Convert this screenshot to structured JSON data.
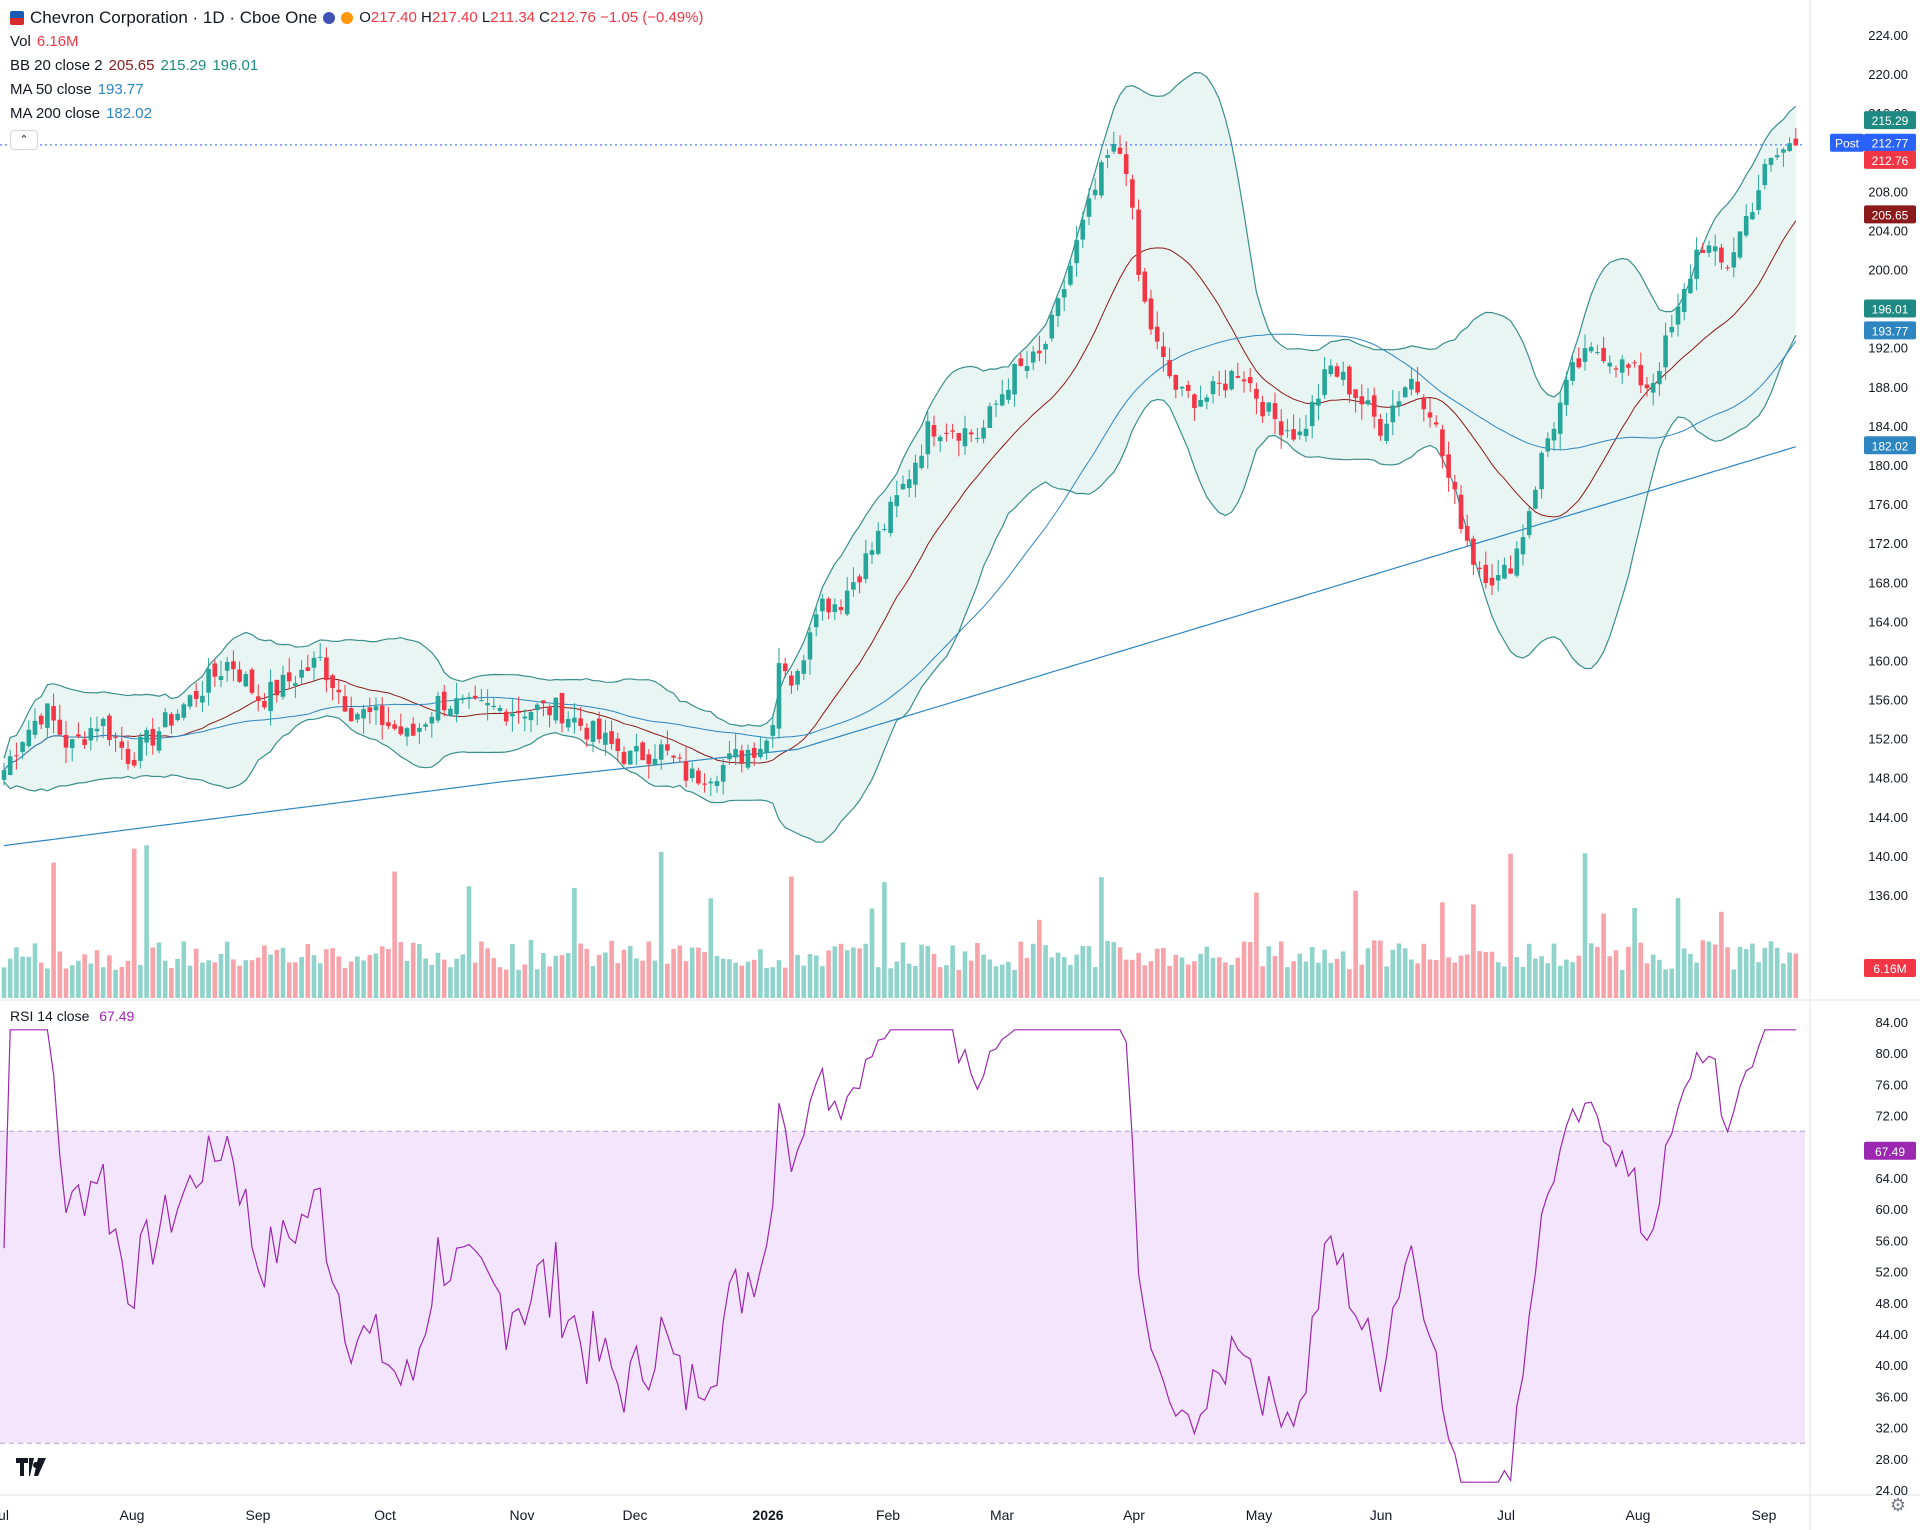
{
  "header": {
    "symbol_title": "Chevron Corporation · 1D · Cboe One",
    "ohlc": {
      "o_label": "O",
      "o": "217.40",
      "h_label": "H",
      "h": "217.40",
      "l_label": "L",
      "l": "211.34",
      "c_label": "C",
      "c": "212.76",
      "change": "−1.05 (−0.49%)"
    },
    "indicators": [
      {
        "label": "Vol",
        "values": [
          "6.16M"
        ]
      },
      {
        "label": "BB 20 close 2",
        "values": [
          "205.65",
          "215.29",
          "196.01"
        ]
      },
      {
        "label": "MA 50 close",
        "values": [
          "193.77"
        ]
      },
      {
        "label": "MA 200 close",
        "values": [
          "182.02"
        ]
      }
    ],
    "collapse_icon": "chevron-up-icon"
  },
  "rsi_legend": {
    "label": "RSI 14 close",
    "value": "67.49"
  },
  "price_axis": {
    "ticks": [
      "224.00",
      "220.00",
      "216.00",
      "212.00",
      "208.00",
      "204.00",
      "200.00",
      "196.00",
      "192.00",
      "188.00",
      "184.00",
      "180.00",
      "176.00",
      "172.00",
      "168.00",
      "164.00",
      "160.00",
      "156.00",
      "152.00",
      "148.00",
      "144.00",
      "140.00",
      "136.00"
    ],
    "badges": [
      {
        "text": "215.29",
        "color": "#1f8a84"
      },
      {
        "text": "Post",
        "color": "#2962ff"
      },
      {
        "text": "212.77",
        "color": "#2962ff"
      },
      {
        "text": "212.76",
        "color": "#f23645"
      },
      {
        "text": "205.65",
        "color": "#8b1a1a"
      },
      {
        "text": "196.01",
        "color": "#1f8a84"
      },
      {
        "text": "193.77",
        "color": "#2e86c1"
      },
      {
        "text": "182.02",
        "color": "#2e86c1"
      },
      {
        "text": "6.16M",
        "color": "#f23645"
      }
    ]
  },
  "rsi_axis": {
    "ticks": [
      "84.00",
      "80.00",
      "76.00",
      "72.00",
      "68.00",
      "64.00",
      "60.00",
      "56.00",
      "52.00",
      "48.00",
      "44.00",
      "40.00",
      "36.00",
      "32.00",
      "28.00",
      "24.00"
    ],
    "badge": {
      "text": "67.49",
      "color": "#9c27b0"
    }
  },
  "time_axis": {
    "labels": [
      "Jul",
      "Aug",
      "Sep",
      "Oct",
      "Nov",
      "Dec",
      "2026",
      "Feb",
      "Mar",
      "Apr",
      "May",
      "Jun",
      "Jul",
      "Aug",
      "Sep"
    ]
  },
  "colors": {
    "up": "#26a69a",
    "down": "#f23645",
    "bb_fill": "#e9f5f3",
    "rsi_band": "#f3e5fc",
    "rsi_line": "#9c27b0",
    "ma50": "#2e86c1",
    "ma200": "#2e86c1",
    "bb_basis": "#8b1a1a"
  },
  "icons": {
    "logo": "tradingview-logo-icon",
    "settings": "gear-icon",
    "symbol": "chevron-logo-icon"
  },
  "chart_data": {
    "type": "line",
    "title": "Chevron Corporation · 1D · Cboe One",
    "x": [
      "Jul",
      "Aug",
      "Sep",
      "Oct",
      "Nov",
      "Dec",
      "2026",
      "Feb",
      "Mar",
      "Apr",
      "May",
      "Jun",
      "Jul",
      "Aug",
      "Sep"
    ],
    "ylim": [
      134,
      225
    ],
    "rsi_ylim": [
      23,
      86
    ],
    "series": [
      {
        "name": "Price",
        "values": [
          148,
          154,
          158,
          158,
          155,
          150,
          153,
          168,
          188,
          212,
          194,
          190,
          170,
          192,
          213
        ]
      },
      {
        "name": "BB 20 close 2",
        "values": [
          144,
          150,
          157,
          157,
          154,
          149,
          151,
          164,
          184,
          209,
          193,
          190,
          174,
          186,
          205.65
        ]
      },
      {
        "name": "MA 50 close",
        "values": [
          148,
          150,
          154,
          152,
          152,
          151,
          151,
          154,
          169,
          190,
          191,
          189,
          183,
          187,
          193.77
        ]
      },
      {
        "name": "MA 200 close",
        "values": [
          142,
          145,
          148,
          150,
          151,
          151,
          151,
          152,
          155,
          161,
          167,
          171,
          173,
          177,
          182.02
        ]
      },
      {
        "name": "RSI 14 close",
        "values": [
          60,
          56,
          62,
          45,
          52,
          45,
          55,
          72,
          66,
          78,
          48,
          48,
          36,
          62,
          67.49
        ]
      }
    ]
  }
}
